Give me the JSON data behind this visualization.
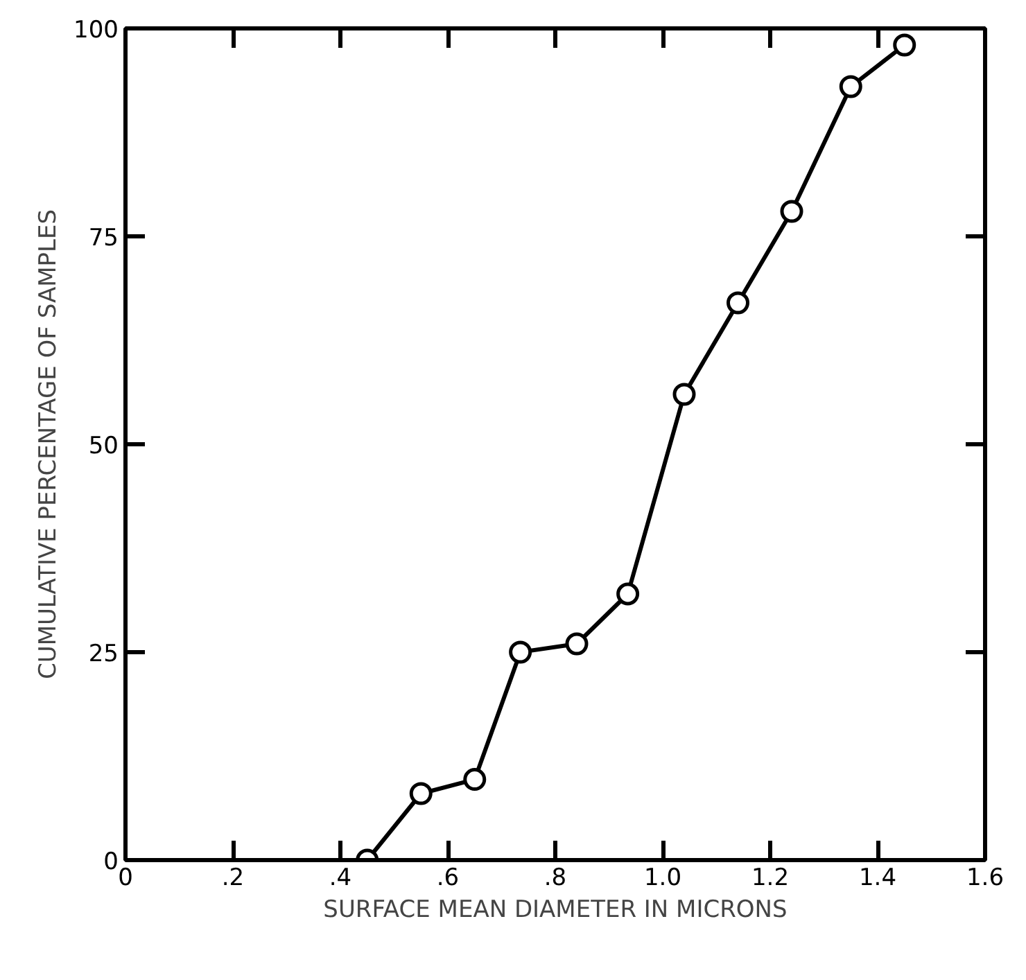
{
  "chart_data": {
    "type": "line",
    "xlabel": "SURFACE MEAN DIAMETER IN MICRONS",
    "ylabel": "CUMULATIVE PERCENTAGE OF SAMPLES",
    "x": [
      0.45,
      0.55,
      0.65,
      0.735,
      0.84,
      0.935,
      1.04,
      1.14,
      1.24,
      1.35,
      1.45
    ],
    "series": [
      {
        "color": "#000000",
        "values": [
          0,
          8,
          9.7,
          25,
          26,
          32,
          56,
          67,
          78,
          93,
          98
        ]
      }
    ],
    "xlim": [
      0,
      1.6
    ],
    "ylim": [
      0,
      100
    ],
    "xticks": [
      0,
      {
        "value": 0.2,
        "label": ".2"
      },
      {
        "value": 0.4,
        "label": ".4"
      },
      {
        "value": 0.6,
        "label": ".6"
      },
      {
        "value": 0.8,
        "label": ".8"
      },
      {
        "value": 1.0,
        "label": "1.0"
      },
      {
        "value": 1.2,
        "label": "1.2"
      },
      {
        "value": 1.4,
        "label": "1.4"
      },
      {
        "value": 1.6,
        "label": "1.6"
      }
    ],
    "yticks": [
      0,
      25,
      50,
      75,
      100
    ],
    "grid": false,
    "marker": "circle",
    "line_style": "solid"
  }
}
